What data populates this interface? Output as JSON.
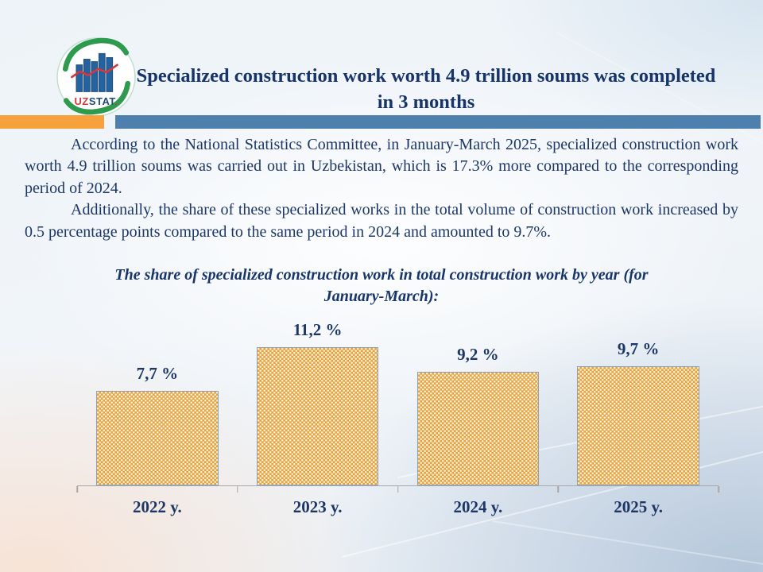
{
  "logo": {
    "uz": "UZ",
    "stat": "STAT",
    "dot": "."
  },
  "header": {
    "title": "Specialized construction work worth 4.9 trillion soums was completed in 3 months"
  },
  "body": {
    "paragraph1": "According to the National Statistics Committee, in January-March 2025, specialized construction work worth 4.9 trillion soums was carried out in Uzbekistan, which is 17.3% more compared to the corresponding period of 2024.",
    "paragraph2": "Additionally, the share of these specialized works in the total volume of construction work increased by 0.5 percentage points compared to the same period in 2024 and amounted to 9.7%."
  },
  "chart_data": {
    "type": "bar",
    "title": "The share of specialized construction work in total construction work by year (for January-March):",
    "categories": [
      "2022 y.",
      "2023 y.",
      "2024 y.",
      "2025 y."
    ],
    "values": [
      7.7,
      11.2,
      9.2,
      9.7
    ],
    "value_labels": [
      "7,7 %",
      "11,2 %",
      "9,2 %",
      "9,7 %"
    ],
    "unit": "%",
    "xlabel": "",
    "ylabel": "",
    "ylim": [
      0,
      12
    ],
    "grid": false,
    "legend": false,
    "bar_fill": "#E7A23C",
    "bar_pattern_dot": "#FDF3E0",
    "bar_border": "#8FA0B4",
    "label_color": "#1C3766",
    "axis_color": "#A8A8A8"
  },
  "colors": {
    "title_navy": "#17356A",
    "text_navy": "#1C3766",
    "band_blue": "#4E80AD",
    "accent_orange": "#F7A13D",
    "logo_green": "#2E9A4E",
    "logo_bar_blue": "#2563A0",
    "logo_red": "#D6373D"
  }
}
